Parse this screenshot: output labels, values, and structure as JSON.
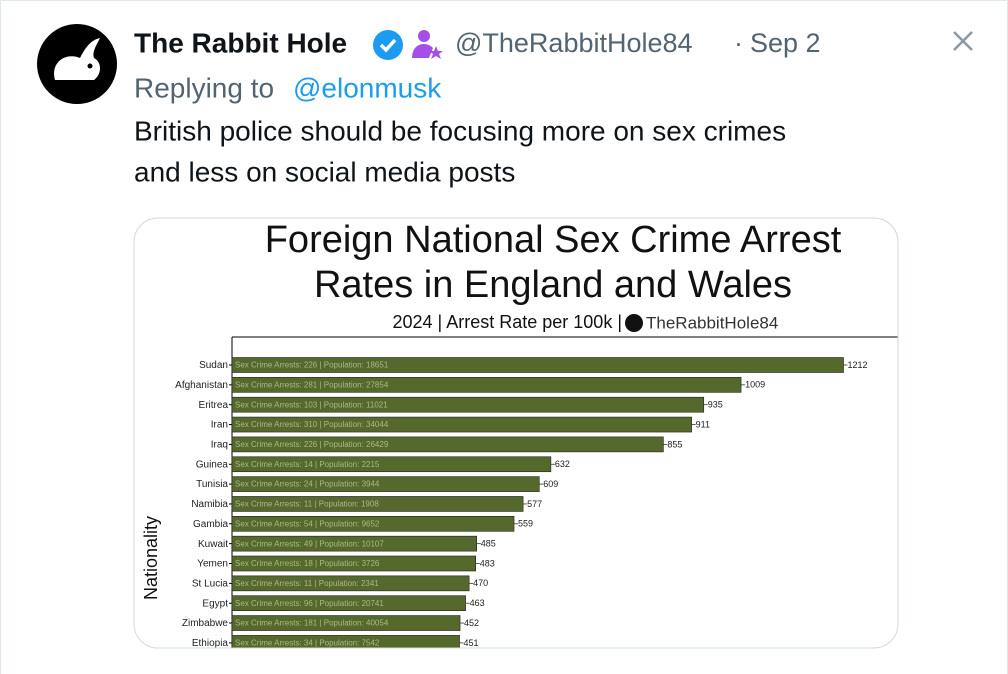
{
  "tweet": {
    "name": "The Rabbit Hole",
    "handle": "@TheRabbitHole84",
    "separator": "·",
    "date": "Sep 2",
    "replying_prefix": "Replying to",
    "replying_to": "@elonmusk",
    "body_lines": [
      "British police should be focusing more on sex crimes",
      "and less on social media posts"
    ]
  },
  "chart_data": {
    "type": "bar",
    "orientation": "horizontal",
    "title_lines": [
      "Foreign National Sex Crime Arrest",
      "Rates in England and Wales"
    ],
    "subtitle": "2024 | Arrest Rate per 100k |",
    "watermark": "TheRabbitHole84",
    "y_label": "Nationality",
    "categories": [
      "Sudan",
      "Afghanistan",
      "Eritrea",
      "Iran",
      "Iraq",
      "Guinea",
      "Tunisia",
      "Namibia",
      "Gambia",
      "Kuwait",
      "Yemen",
      "St Lucia",
      "Egypt",
      "Zimbabwe",
      "Ethiopia"
    ],
    "values": [
      1212,
      1009,
      935,
      911,
      855,
      632,
      609,
      577,
      559,
      485,
      483,
      470,
      463,
      452,
      451
    ],
    "bar_labels": [
      "Sex Crime Arrests: 226 | Population: 18651",
      "Sex Crime Arrests: 281 | Population: 27854",
      "Sex Crime Arrests: 103 | Population: 11021",
      "Sex Crime Arrests: 310 | Population: 34044",
      "Sex Crime Arrests: 226 | Population: 26429",
      "Sex Crime Arrests: 14 | Population: 2215",
      "Sex Crime Arrests: 24 | Population: 3944",
      "Sex Crime Arrests: 11 | Population: 1908",
      "Sex Crime Arrests: 54 | Population: 9652",
      "Sex Crime Arrests: 49 | Population: 10107",
      "Sex Crime Arrests: 18 | Population: 3726",
      "Sex Crime Arrests: 11 | Population: 2341",
      "Sex Crime Arrests: 96 | Population: 20741",
      "Sex Crime Arrests: 181 | Population: 40054",
      "Sex Crime Arrests: 34 | Population: 7542"
    ],
    "color": "#56692c",
    "xlim": [
      0,
      1320
    ]
  }
}
